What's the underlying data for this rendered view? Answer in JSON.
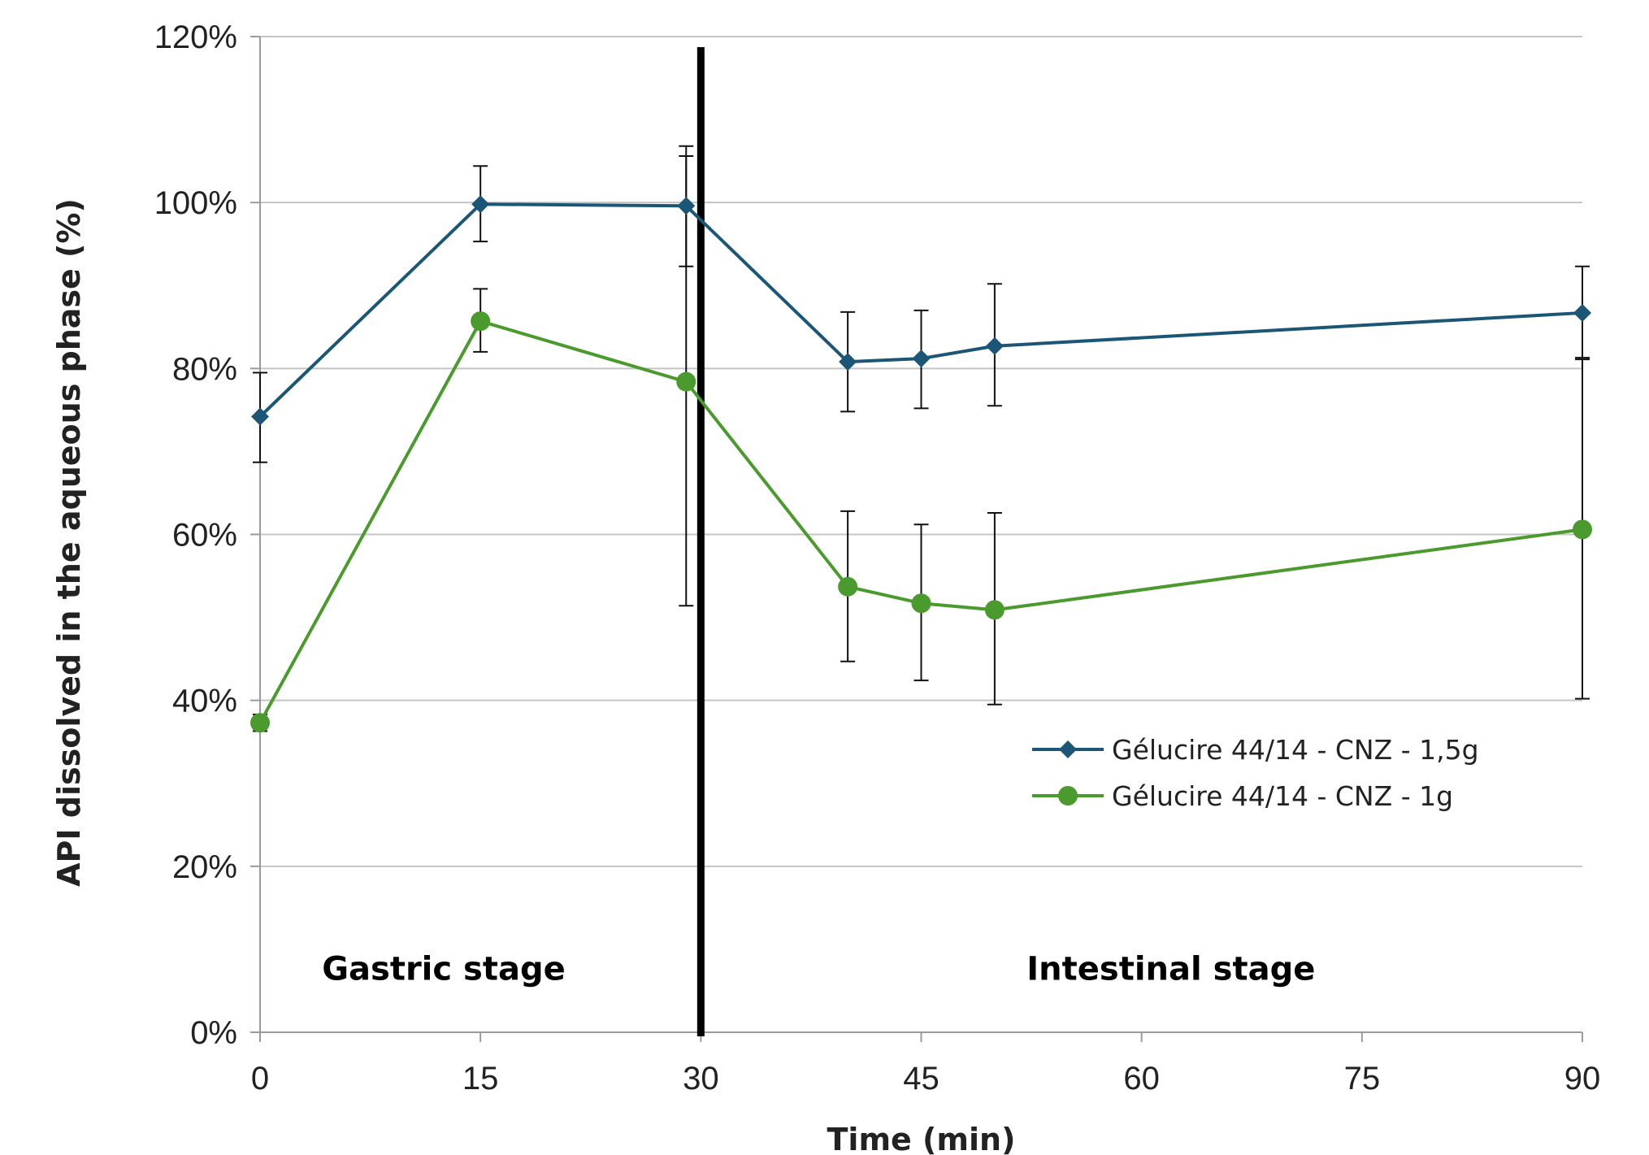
{
  "chart_data": {
    "type": "line",
    "xlabel": "Time (min)",
    "ylabel": "API dissolved in the aqueous phase (%)",
    "xlim": [
      0,
      90
    ],
    "ylim": [
      0,
      120
    ],
    "xticks": [
      0,
      15,
      30,
      45,
      60,
      75,
      90
    ],
    "yticks": [
      0,
      20,
      40,
      60,
      80,
      100,
      120
    ],
    "xtick_labels": [
      "0",
      "15",
      "30",
      "45",
      "60",
      "75",
      "90"
    ],
    "ytick_labels": [
      "0%",
      "20%",
      "40%",
      "60%",
      "80%",
      "100%",
      "120%"
    ],
    "grid": "horizontal",
    "legend_position": "lower-right",
    "divider_x": 30,
    "annotations": [
      {
        "text": "Gastric stage",
        "x": 12.5,
        "y": 7.7
      },
      {
        "text": "Intestinal stage",
        "x": 62,
        "y": 7.7
      }
    ],
    "series": [
      {
        "name": "Gélucire 44/14 - CNZ - 1,5g",
        "color": "#1b5677",
        "marker": "diamond",
        "x": [
          0,
          15,
          29,
          40,
          45,
          50,
          90
        ],
        "y": [
          74.2,
          99.8,
          99.6,
          80.8,
          81.2,
          82.7,
          86.7
        ],
        "err_low": [
          68.7,
          95.3,
          92.3,
          74.8,
          75.2,
          75.5,
          81.3
        ],
        "err_high": [
          79.5,
          104.4,
          106.8,
          86.8,
          87.0,
          90.2,
          92.3
        ]
      },
      {
        "name": "Gélucire 44/14 - CNZ - 1g",
        "color": "#4a9a2e",
        "marker": "circle",
        "x": [
          0,
          15,
          29,
          40,
          45,
          50,
          90
        ],
        "y": [
          37.3,
          85.7,
          78.4,
          53.7,
          51.7,
          50.9,
          60.6
        ],
        "err_low": [
          36.3,
          82.0,
          51.4,
          44.7,
          42.4,
          39.5,
          40.2
        ],
        "err_high": [
          38.3,
          89.6,
          105.6,
          62.8,
          61.2,
          62.6,
          81.1
        ]
      }
    ]
  }
}
